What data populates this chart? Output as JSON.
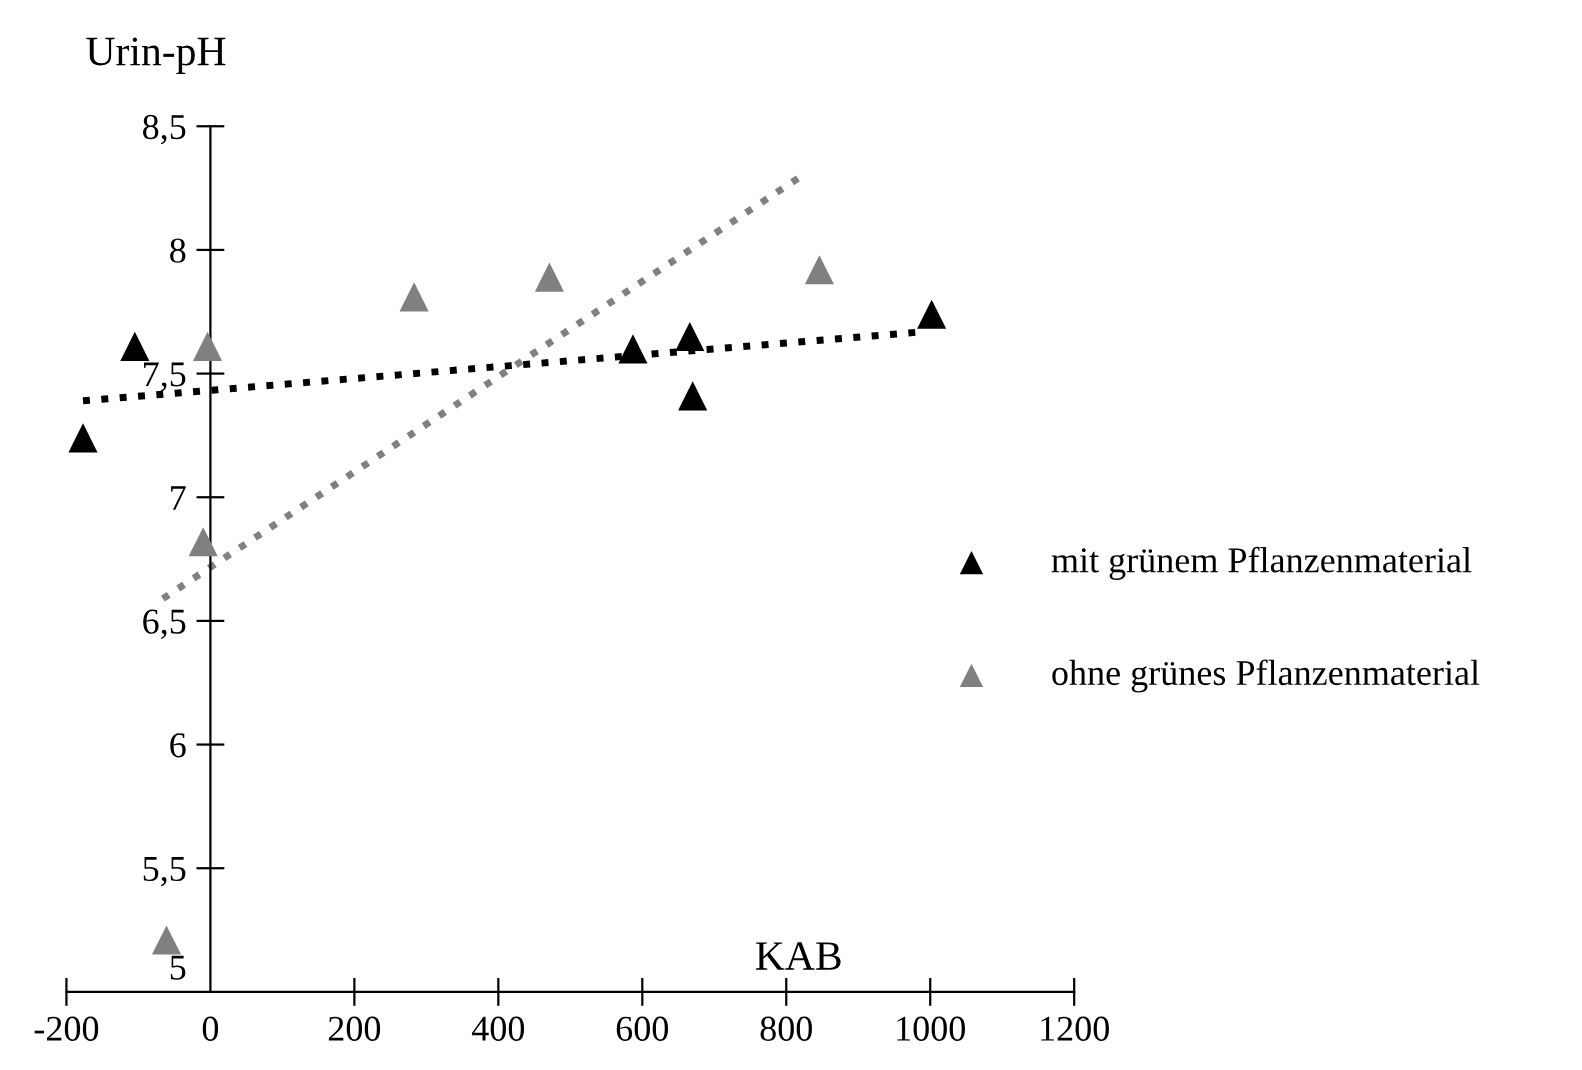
{
  "chart_data": {
    "type": "scatter",
    "xlabel": "KAB",
    "ylabel": "Urin-pH",
    "marker": "triangle",
    "legend": "right",
    "grid": false,
    "xlim": [
      -200,
      1200
    ],
    "ylim": [
      5,
      8.5
    ],
    "xticks": [
      -200,
      0,
      200,
      400,
      600,
      800,
      1000,
      1200
    ],
    "yticks": [
      5,
      {
        "value": 5.5,
        "label": "5,5"
      },
      6,
      {
        "value": 6.5,
        "label": "6,5"
      },
      7,
      {
        "value": 7.5,
        "label": "7,5"
      },
      8,
      {
        "value": 8.5,
        "label": "8,5"
      }
    ],
    "series": [
      {
        "name": "mit grünem Pflanzenmaterial",
        "color": "#000000",
        "x": [
          -177,
          -105,
          587,
          666,
          670,
          1002
        ],
        "values": [
          7.24,
          7.61,
          7.6,
          7.65,
          7.41,
          7.74
        ]
      },
      {
        "name": "ohne grünes Pflanzenmaterial",
        "color": "#808080",
        "x": [
          -61,
          -10,
          -4,
          283,
          471,
          846
        ],
        "values": [
          5.21,
          6.82,
          7.61,
          7.81,
          7.89,
          7.92
        ]
      },
      {
        "type": "line",
        "line_style": "dotted",
        "marker": "none",
        "color": "#000000",
        "x": [
          -177,
          994
        ],
        "values": [
          7.39,
          7.67
        ]
      },
      {
        "type": "line",
        "line_style": "dotted",
        "marker": "none",
        "color": "#808080",
        "x": [
          -66,
          827
        ],
        "values": [
          6.59,
          8.31
        ]
      }
    ]
  }
}
